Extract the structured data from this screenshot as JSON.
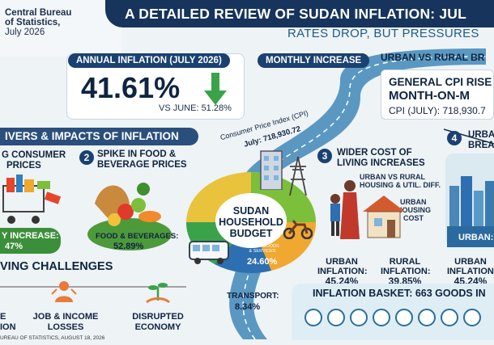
{
  "header": {
    "source_lines": [
      "Central Bureau",
      "of Statistics,",
      "July 2026"
    ],
    "title": "A DETAILED REVIEW OF SUDAN INFLATION: JUL",
    "subtitle": "RATES DROP, BUT PRESSURES"
  },
  "annual": {
    "label": "ANNUAL INFLATION (JULY 2026)",
    "value": "41.61%",
    "vs": "VS JUNE: 51.28%"
  },
  "monthly": {
    "label": "MONTHLY INCREASE",
    "ur_label": "URBAN VS RURAL BR",
    "line1": "GENERAL CPI RISE",
    "line2": "MONTH-ON-M",
    "line3": "CPI (JULY): 718,930.7"
  },
  "road": {
    "label1": "Consumer Price Index (CPI)",
    "label2": "July: 718,930.72"
  },
  "drivers": {
    "title": "IVERS & IMPACTS OF INFLATION",
    "card1_l1": "G CONSUMER",
    "card1_l2": "PRICES",
    "card1_stat": "Y INCREASE:",
    "card1_val": "47%",
    "card2_num": "2",
    "card2_l1": "SPIKE IN FOOD &",
    "card2_l2": "BEVERAGE PRICES",
    "card2_stat1": "FOOD & BEVERAGES:",
    "card2_stat2": "52.89%",
    "card3_num": "3",
    "card3_l1": "WIDER COST OF",
    "card3_l2": "LIVING INCREASES",
    "card3_note1": "URBAN VS RURAL",
    "card3_note2": "HOUSING & UTIL. DIFF.",
    "card3_note3": "URBAN",
    "card3_note4": "HOUSING",
    "card3_note5": "COST",
    "urban_label": "URBAN",
    "urban_label2": "INFLATION:",
    "urban_val": "45.24%",
    "rural_label": "RURAL",
    "rural_label2": "INFLATION:",
    "rural_val": "39.85%",
    "card4_num": "4",
    "card4_l1": "URBAN",
    "card4_l2": "BREAK",
    "card4_stat": "URBAN:",
    "card4_ul1": "URBAN",
    "card4_ul2": "INFLATION:",
    "card4_uval": "45.24%"
  },
  "budget": {
    "l1": "SUDAN",
    "l2": "HOUSEHOLD",
    "l3": "BUDGET",
    "other1": "OTHER GOODS",
    "other2": "& SERVICES",
    "other_val": "24.60%",
    "transport": "TRANSPORT:",
    "transport_val": "8.34%"
  },
  "challenges": {
    "title": "VING CHALLENGES",
    "item1a": "E",
    "item1b": "ION",
    "item2a": "JOB & INCOME",
    "item2b": "LOSSES",
    "item3a": "DISRUPTED",
    "item3b": "ECONOMY"
  },
  "basket": {
    "title": "INFLATION BASKET: 663 GOODS IN"
  },
  "footer": "UREAU OF STATISTICS, AUGUST 18, 2026"
}
